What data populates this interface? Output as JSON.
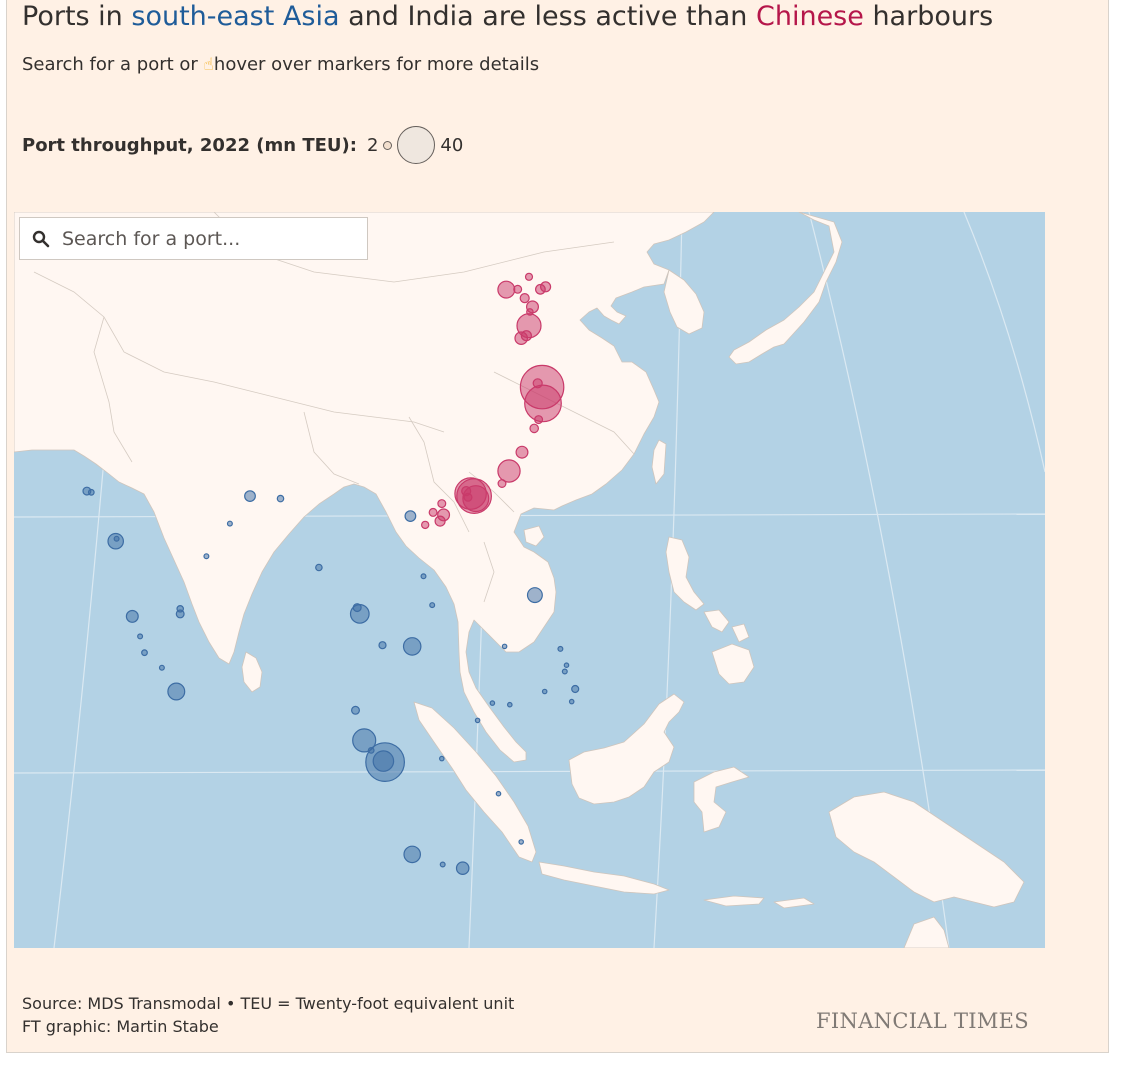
{
  "title": {
    "part1": "Ports in ",
    "asia": "south-east Asia",
    "part2": " and India are less active than ",
    "china": "Chinese",
    "part3": " harbours"
  },
  "subtitle": {
    "part1": "Search for a port or ",
    "hand_icon": "pointing-hand",
    "part2": "hover over markers for more details"
  },
  "legend": {
    "label": "Port throughput, 2022 (mn TEU):",
    "min_value": "2",
    "max_value": "40"
  },
  "search": {
    "placeholder": "Search for a port...",
    "value": ""
  },
  "footer": {
    "source": "Source: MDS Transmodal • TEU = Twenty-foot equivalent unit",
    "credit": "FT graphic: Martin Stabe",
    "logo": "FINANCIAL TIMES"
  },
  "colors": {
    "background": "#fff1e5",
    "water": "#b3d2e5",
    "land": "#fff7f2",
    "china_ports": "#c93a6a",
    "other_ports": "#3d6da4",
    "asia_text": "#1f5c99",
    "china_text": "#b5164a"
  },
  "ports": [
    {
      "group": "china",
      "teu": 7.0,
      "lon": 117.7,
      "lat": 38.98
    },
    {
      "group": "china",
      "teu": 1.5,
      "lon": 119.0,
      "lat": 39.0
    },
    {
      "group": "china",
      "teu": 2.3,
      "lon": 121.6,
      "lat": 39.0
    },
    {
      "group": "china",
      "teu": 1.2,
      "lon": 120.3,
      "lat": 40.0
    },
    {
      "group": "china",
      "teu": 2.5,
      "lon": 122.2,
      "lat": 39.2
    },
    {
      "group": "china",
      "teu": 2.0,
      "lon": 119.8,
      "lat": 38.3
    },
    {
      "group": "china",
      "teu": 3.5,
      "lon": 120.7,
      "lat": 37.6
    },
    {
      "group": "china",
      "teu": 1.0,
      "lon": 120.4,
      "lat": 37.2
    },
    {
      "group": "china",
      "teu": 14.3,
      "lon": 120.3,
      "lat": 36.1
    },
    {
      "group": "china",
      "teu": 3.8,
      "lon": 119.4,
      "lat": 35.1
    },
    {
      "group": "china",
      "teu": 2.5,
      "lon": 120.0,
      "lat": 35.3
    },
    {
      "group": "china",
      "teu": 47.3,
      "lon": 121.8,
      "lat": 31.2
    },
    {
      "group": "china",
      "teu": 2.0,
      "lon": 121.3,
      "lat": 31.5
    },
    {
      "group": "china",
      "teu": 33.4,
      "lon": 121.9,
      "lat": 29.9
    },
    {
      "group": "china",
      "teu": 1.5,
      "lon": 121.4,
      "lat": 28.6
    },
    {
      "group": "china",
      "teu": 1.8,
      "lon": 120.9,
      "lat": 27.9
    },
    {
      "group": "china",
      "teu": 3.5,
      "lon": 119.5,
      "lat": 26.0
    },
    {
      "group": "china",
      "teu": 12.4,
      "lon": 118.0,
      "lat": 24.5
    },
    {
      "group": "china",
      "teu": 1.5,
      "lon": 117.2,
      "lat": 23.5
    },
    {
      "group": "china",
      "teu": 30.0,
      "lon": 114.0,
      "lat": 22.5
    },
    {
      "group": "china",
      "teu": 16.7,
      "lon": 114.2,
      "lat": 22.3
    },
    {
      "group": "china",
      "teu": 24.5,
      "lon": 113.6,
      "lat": 22.7
    },
    {
      "group": "china",
      "teu": 2.0,
      "lon": 113.1,
      "lat": 22.9
    },
    {
      "group": "china",
      "teu": 1.5,
      "lon": 113.3,
      "lat": 22.4
    },
    {
      "group": "china",
      "teu": 3.5,
      "lon": 110.5,
      "lat": 21.0
    },
    {
      "group": "china",
      "teu": 1.5,
      "lon": 110.3,
      "lat": 21.9
    },
    {
      "group": "china",
      "teu": 2.5,
      "lon": 110.1,
      "lat": 20.5
    },
    {
      "group": "china",
      "teu": 1.5,
      "lon": 109.3,
      "lat": 21.2
    },
    {
      "group": "china",
      "teu": 1.3,
      "lon": 108.4,
      "lat": 20.2
    },
    {
      "group": "other",
      "teu": 1.5,
      "lon": 69.6,
      "lat": 22.9
    },
    {
      "group": "other",
      "teu": 0.8,
      "lon": 70.1,
      "lat": 22.8
    },
    {
      "group": "other",
      "teu": 6.0,
      "lon": 72.9,
      "lat": 18.9
    },
    {
      "group": "other",
      "teu": 0.6,
      "lon": 73.0,
      "lat": 19.1
    },
    {
      "group": "other",
      "teu": 3.5,
      "lon": 74.8,
      "lat": 12.9
    },
    {
      "group": "other",
      "teu": 0.6,
      "lon": 75.7,
      "lat": 11.3
    },
    {
      "group": "other",
      "teu": 0.8,
      "lon": 76.2,
      "lat": 10.0
    },
    {
      "group": "other",
      "teu": 0.6,
      "lon": 78.2,
      "lat": 8.8
    },
    {
      "group": "other",
      "teu": 1.5,
      "lon": 80.3,
      "lat": 13.1
    },
    {
      "group": "other",
      "teu": 1.0,
      "lon": 80.3,
      "lat": 13.5
    },
    {
      "group": "other",
      "teu": 0.6,
      "lon": 83.3,
      "lat": 17.7
    },
    {
      "group": "other",
      "teu": 0.6,
      "lon": 86.0,
      "lat": 20.3
    },
    {
      "group": "other",
      "teu": 2.8,
      "lon": 88.3,
      "lat": 22.5
    },
    {
      "group": "other",
      "teu": 7.0,
      "lon": 79.85,
      "lat": 6.9
    },
    {
      "group": "other",
      "teu": 1.0,
      "lon": 91.8,
      "lat": 22.3
    },
    {
      "group": "other",
      "teu": 1.0,
      "lon": 96.2,
      "lat": 16.8
    },
    {
      "group": "other",
      "teu": 2.8,
      "lon": 106.7,
      "lat": 20.9
    },
    {
      "group": "other",
      "teu": 0.6,
      "lon": 108.2,
      "lat": 16.1
    },
    {
      "group": "other",
      "teu": 0.6,
      "lon": 109.2,
      "lat": 13.8
    },
    {
      "group": "other",
      "teu": 7.5,
      "lon": 106.9,
      "lat": 10.5
    },
    {
      "group": "other",
      "teu": 1.2,
      "lon": 103.5,
      "lat": 10.6
    },
    {
      "group": "other",
      "teu": 8.7,
      "lon": 100.9,
      "lat": 13.1
    },
    {
      "group": "other",
      "teu": 1.5,
      "lon": 100.6,
      "lat": 13.6
    },
    {
      "group": "other",
      "teu": 1.5,
      "lon": 100.4,
      "lat": 5.4
    },
    {
      "group": "other",
      "teu": 13.2,
      "lon": 101.4,
      "lat": 3.0
    },
    {
      "group": "other",
      "teu": 0.8,
      "lon": 102.2,
      "lat": 2.2
    },
    {
      "group": "other",
      "teu": 37.3,
      "lon": 103.8,
      "lat": 1.27
    },
    {
      "group": "other",
      "teu": 10.5,
      "lon": 103.6,
      "lat": 1.35
    },
    {
      "group": "other",
      "teu": 6.8,
      "lon": 106.9,
      "lat": -6.1
    },
    {
      "group": "other",
      "teu": 3.9,
      "lon": 112.7,
      "lat": -7.2
    },
    {
      "group": "other",
      "teu": 0.6,
      "lon": 110.4,
      "lat": -6.9
    },
    {
      "group": "other",
      "teu": 5.5,
      "lon": 120.97,
      "lat": 14.6
    },
    {
      "group": "other",
      "teu": 0.6,
      "lon": 123.9,
      "lat": 10.3
    },
    {
      "group": "other",
      "teu": 0.6,
      "lon": 124.4,
      "lat": 8.5
    },
    {
      "group": "other",
      "teu": 1.2,
      "lon": 125.6,
      "lat": 7.1
    },
    {
      "group": "other",
      "teu": 0.5,
      "lon": 122.1,
      "lat": 6.9
    },
    {
      "group": "other",
      "teu": 0.5,
      "lon": 118.1,
      "lat": 5.85
    },
    {
      "group": "other",
      "teu": 0.5,
      "lon": 116.1,
      "lat": 5.98
    },
    {
      "group": "other",
      "teu": 0.5,
      "lon": 110.3,
      "lat": 1.55
    },
    {
      "group": "other",
      "teu": 0.5,
      "lon": 119.4,
      "lat": -5.1
    },
    {
      "group": "other",
      "teu": 0.5,
      "lon": 116.8,
      "lat": -1.25
    },
    {
      "group": "other",
      "teu": 0.5,
      "lon": 114.4,
      "lat": 4.6
    },
    {
      "group": "other",
      "teu": 0.5,
      "lon": 117.5,
      "lat": 10.5
    },
    {
      "group": "other",
      "teu": 0.5,
      "lon": 124.6,
      "lat": 9.0
    },
    {
      "group": "other",
      "teu": 0.5,
      "lon": 125.2,
      "lat": 6.1
    }
  ]
}
